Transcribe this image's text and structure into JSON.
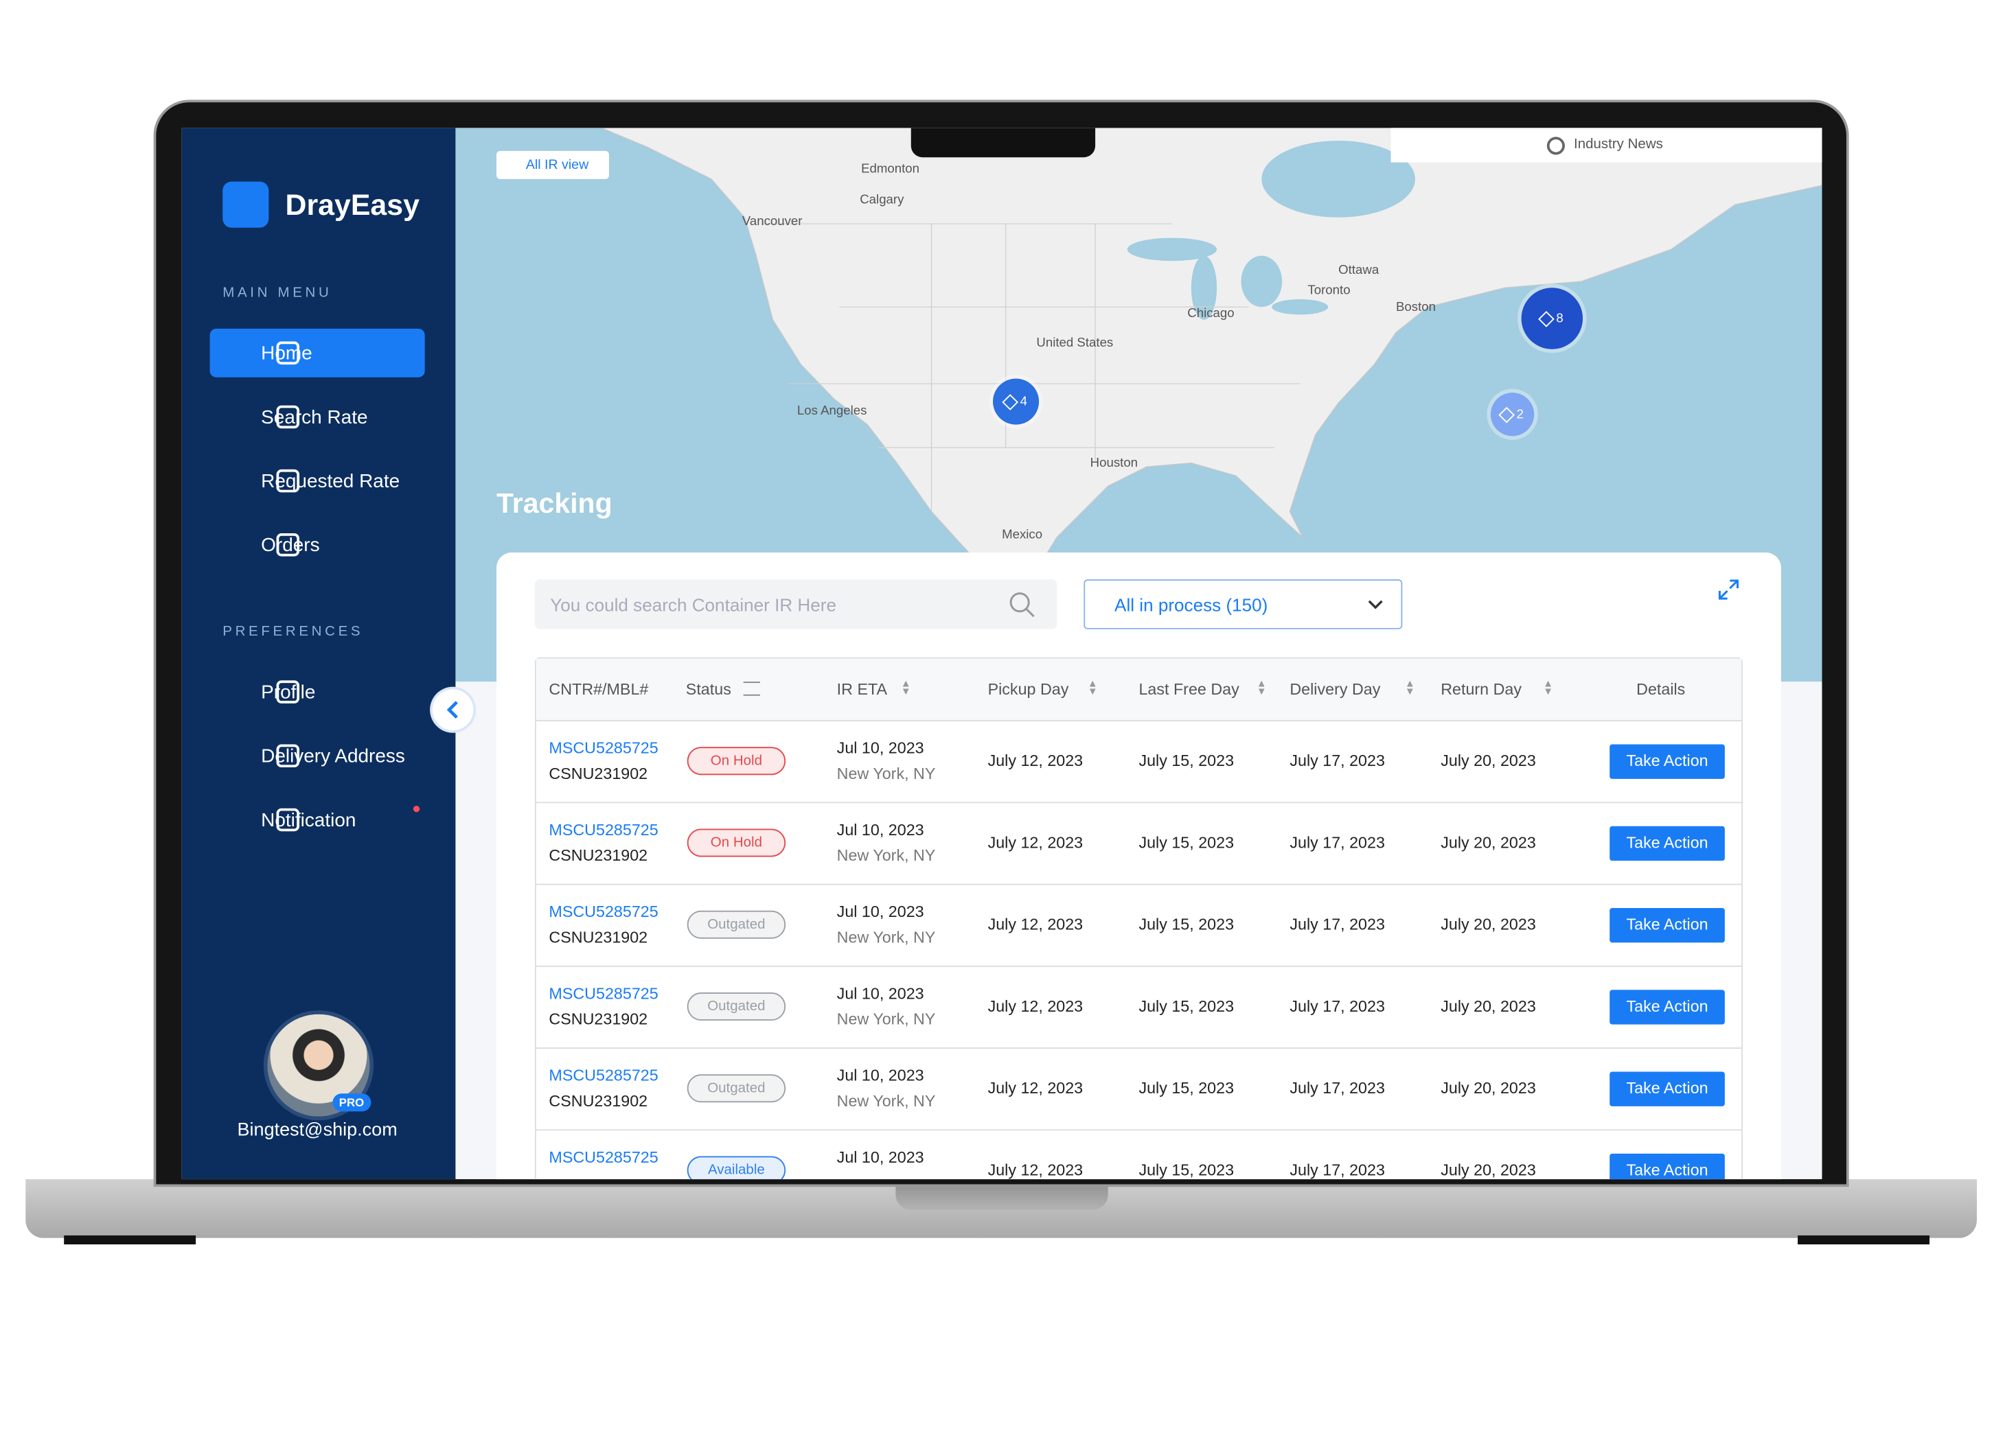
{
  "sidebar": {
    "brand": "DrayEasy",
    "main_menu_title": "MAIN MENU",
    "main_menu": [
      "Home",
      "Search Rate",
      "Requested Rate",
      "Orders"
    ],
    "preferences_title": "PREFERENCES",
    "preferences": [
      "Profile",
      "Delivery Address",
      "Notification"
    ],
    "avatar_badge": "PRO",
    "user_email": "Bingtest@ship.com"
  },
  "map": {
    "view_button": "All IR view",
    "news_tab": "Industry News",
    "title": "Tracking",
    "labels": [
      "Edmonton",
      "Calgary",
      "Vancouver",
      "Ottawa",
      "Toronto",
      "Chicago",
      "Boston",
      "United States",
      "Houston",
      "Mexico",
      "Los Angeles"
    ],
    "markers": [
      4,
      8,
      2
    ]
  },
  "table": {
    "search_placeholder": "You could search Container IR Here",
    "filter": "All in process (150)",
    "headers": [
      "CNTR#/MBL#",
      "Status",
      "IR ETA",
      "Pickup Day",
      "Last Free Day",
      "Delivery Day",
      "Return Day",
      "Details"
    ],
    "rows": [
      {
        "cntr": "MSCU5285725",
        "mbl": "CSNU231902",
        "status": "On Hold",
        "status_color": "#e5484d",
        "eta_date": "Jul 10, 2023",
        "eta_city": "New York, NY",
        "pickup": "July 12, 2023",
        "last_free": "July 15, 2023",
        "delivery": "July 17, 2023",
        "return": "July 20, 2023",
        "action": "Take Action"
      },
      {
        "cntr": "MSCU5285725",
        "mbl": "CSNU231902",
        "status": "On Hold",
        "status_color": "#e5484d",
        "eta_date": "Jul 10, 2023",
        "eta_city": "New York, NY",
        "pickup": "July 12, 2023",
        "last_free": "July 15, 2023",
        "delivery": "July 17, 2023",
        "return": "July 20, 2023",
        "action": "Take Action"
      },
      {
        "cntr": "MSCU5285725",
        "mbl": "CSNU231902",
        "status": "Outgated",
        "status_color": "#9aa0a8",
        "eta_date": "Jul 10, 2023",
        "eta_city": "New York, NY",
        "pickup": "July 12, 2023",
        "last_free": "July 15, 2023",
        "delivery": "July 17, 2023",
        "return": "July 20, 2023",
        "action": "Take Action"
      },
      {
        "cntr": "MSCU5285725",
        "mbl": "CSNU231902",
        "status": "Outgated",
        "status_color": "#9aa0a8",
        "eta_date": "Jul 10, 2023",
        "eta_city": "New York, NY",
        "pickup": "July 12, 2023",
        "last_free": "July 15, 2023",
        "delivery": "July 17, 2023",
        "return": "July 20, 2023",
        "action": "Take Action"
      },
      {
        "cntr": "MSCU5285725",
        "mbl": "CSNU231902",
        "status": "Outgated",
        "status_color": "#9aa0a8",
        "eta_date": "Jul 10, 2023",
        "eta_city": "New York, NY",
        "pickup": "July 12, 2023",
        "last_free": "July 15, 2023",
        "delivery": "July 17, 2023",
        "return": "July 20, 2023",
        "action": "Take Action"
      },
      {
        "cntr": "MSCU5285725",
        "status": "Available",
        "status_color": "#2f80ed",
        "eta_date": "Jul 10, 2023",
        "pickup": "July 12, 2023",
        "last_free": "July 15, 2023",
        "delivery": "July 17, 2023",
        "return": "July 20, 2023",
        "action": "Take Action"
      }
    ]
  }
}
